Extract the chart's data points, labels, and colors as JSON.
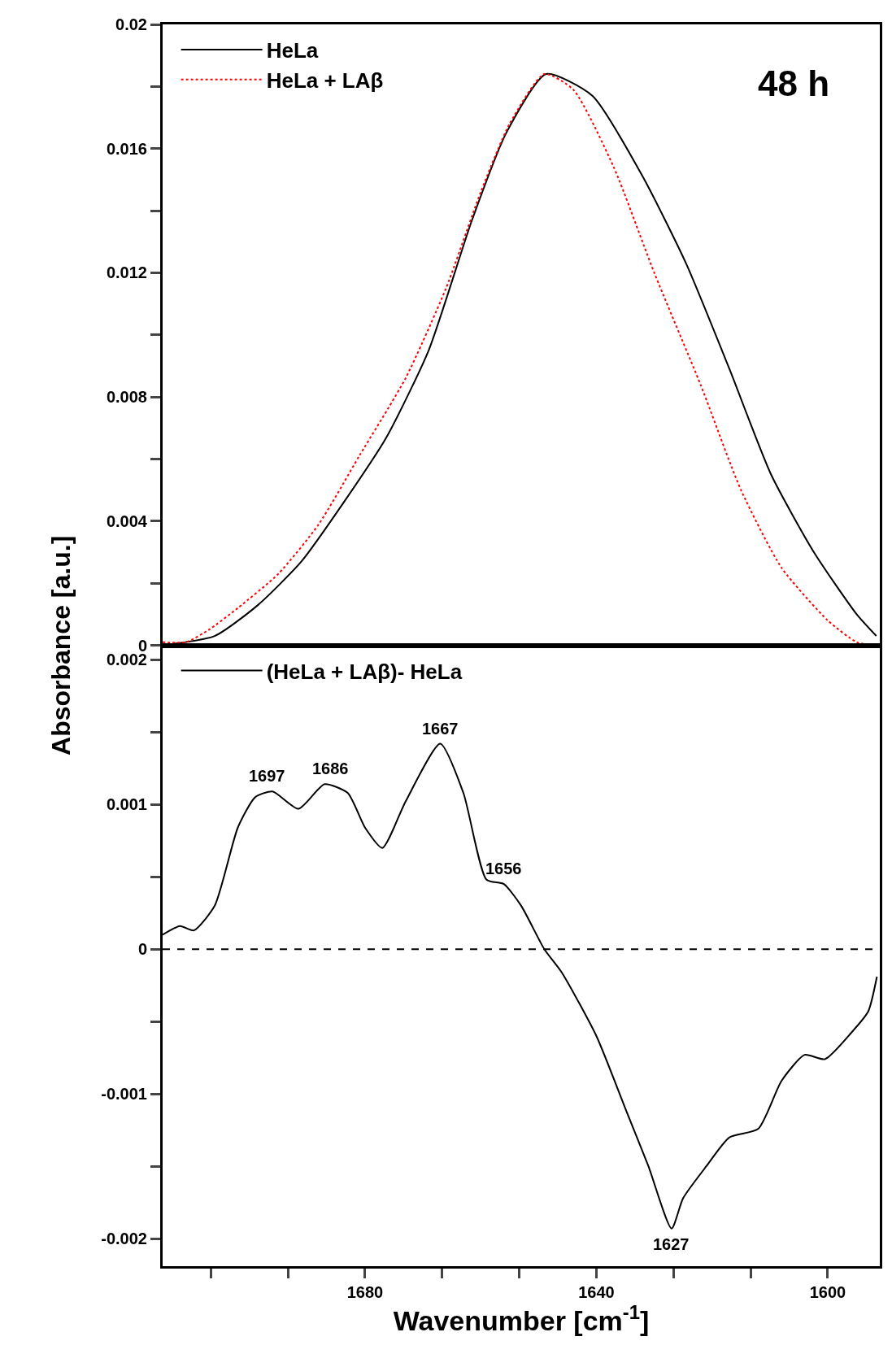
{
  "chart_data": [
    {
      "type": "line",
      "ylabel": "Absorbance [a.u.]",
      "annotations": [
        "48 h"
      ],
      "xlim": [
        1715,
        1591
      ],
      "ylim": [
        0,
        0.02
      ],
      "yticks": [
        0,
        {
          "value": 0.002,
          "label": null
        },
        0.004,
        {
          "value": 0.006,
          "label": null
        },
        0.008,
        {
          "value": 0.01,
          "label": null
        },
        0.012,
        {
          "value": 0.014,
          "label": null
        },
        0.016,
        {
          "value": 0.018,
          "label": null
        },
        0.02
      ],
      "tick_labels": "y",
      "grid": false,
      "legend": "top left",
      "marker": "none",
      "series": [
        {
          "name": "HeLa",
          "color": "#000000",
          "line_style": "solid",
          "x": [
            1715,
            1706,
            1698.5,
            1691,
            1683.7,
            1676.3,
            1669,
            1661.5,
            1655.6,
            1648.7,
            1640.7,
            1632,
            1624.5,
            1617,
            1609.8,
            1602.4,
            1595,
            1591.6
          ],
          "values": [
            0,
            0.0003,
            0.0013,
            0.0027,
            0.0046,
            0.0067,
            0.0095,
            0.0137,
            0.0165,
            0.0184,
            0.0177,
            0.0151,
            0.0123,
            0.0089,
            0.0055,
            0.003,
            0.001,
            0.0003
          ]
        },
        {
          "name": "HeLa + LAβ",
          "color": "#ff0000",
          "line_style": "dotted",
          "x": [
            1715,
            1711,
            1707,
            1702,
            1695,
            1688,
            1681,
            1673,
            1666,
            1660,
            1655,
            1649,
            1644,
            1637,
            1630,
            1622,
            1615,
            1608,
            1600,
            1595,
            1592
          ],
          "values": [
            0.0001,
            0.0001,
            0.0005,
            0.0012,
            0.0023,
            0.0039,
            0.0061,
            0.0086,
            0.0115,
            0.0146,
            0.0168,
            0.0184,
            0.0179,
            0.0154,
            0.012,
            0.0084,
            0.005,
            0.0025,
            0.0008,
            0.0001,
            0
          ]
        }
      ]
    },
    {
      "type": "line",
      "xlabel": "Wavenumber [cm$^{-1}$]",
      "annotations": [
        {
          "text": "1697",
          "x": 1697,
          "y": 0.00109
        },
        {
          "text": "1686",
          "x": 1686,
          "y": 0.00114
        },
        {
          "text": "1667",
          "x": 1667,
          "y": 0.00142
        },
        {
          "text": "1656",
          "x": 1656,
          "y": 0.00045
        },
        {
          "text": "1627",
          "x": 1627,
          "y": -0.00193
        }
      ],
      "xlim": [
        1715,
        1591
      ],
      "xticks": [
        {
          "value": 1706.67,
          "label": null
        },
        {
          "value": 1693.33,
          "label": null
        },
        1680,
        {
          "value": 1666.67,
          "label": null
        },
        {
          "value": 1653.33,
          "label": null
        },
        1640,
        {
          "value": 1626.67,
          "label": null
        },
        {
          "value": 1613.33,
          "label": null
        },
        1600
      ],
      "ylim": [
        -0.00219,
        0.0021
      ],
      "yticks": [
        -0.002,
        {
          "value": -0.0015,
          "label": null
        },
        -0.001,
        {
          "value": -0.0005,
          "label": null
        },
        0,
        {
          "value": 0.0005,
          "label": null
        },
        0.001,
        {
          "value": 0.0015,
          "label": null
        },
        0.002
      ],
      "grid": false,
      "legend": "top left",
      "marker": "none",
      "ref_lines": [
        {
          "axis": "y",
          "value": 0,
          "color": "#000000",
          "line_style": "dashed"
        }
      ],
      "series": [
        {
          "name": "(HeLa + LAβ)- HeLa",
          "color": "#000000",
          "line_style": "solid",
          "x": [
            1715,
            1712,
            1709.6,
            1706,
            1702,
            1699,
            1696,
            1691.5,
            1687,
            1683,
            1680,
            1677,
            1673,
            1667,
            1663,
            1659,
            1656,
            1653,
            1649,
            1646,
            1640,
            1635,
            1631,
            1627,
            1625,
            1621,
            1617,
            1612,
            1608,
            1604,
            1600.5,
            1596,
            1593,
            1591.5
          ],
          "values": [
            0.0001,
            0.00016,
            0.00013,
            0.0003,
            0.00084,
            0.00105,
            0.00109,
            0.00097,
            0.00114,
            0.00108,
            0.00084,
            0.0007,
            0.00102,
            0.00142,
            0.00108,
            0.00048,
            0.00045,
            0.0003,
            0,
            -0.00016,
            -0.0006,
            -0.0011,
            -0.0015,
            -0.00193,
            -0.00172,
            -0.0015,
            -0.0013,
            -0.00124,
            -0.00091,
            -0.00073,
            -0.00076,
            -0.00058,
            -0.00043,
            -0.00019
          ]
        }
      ]
    }
  ]
}
